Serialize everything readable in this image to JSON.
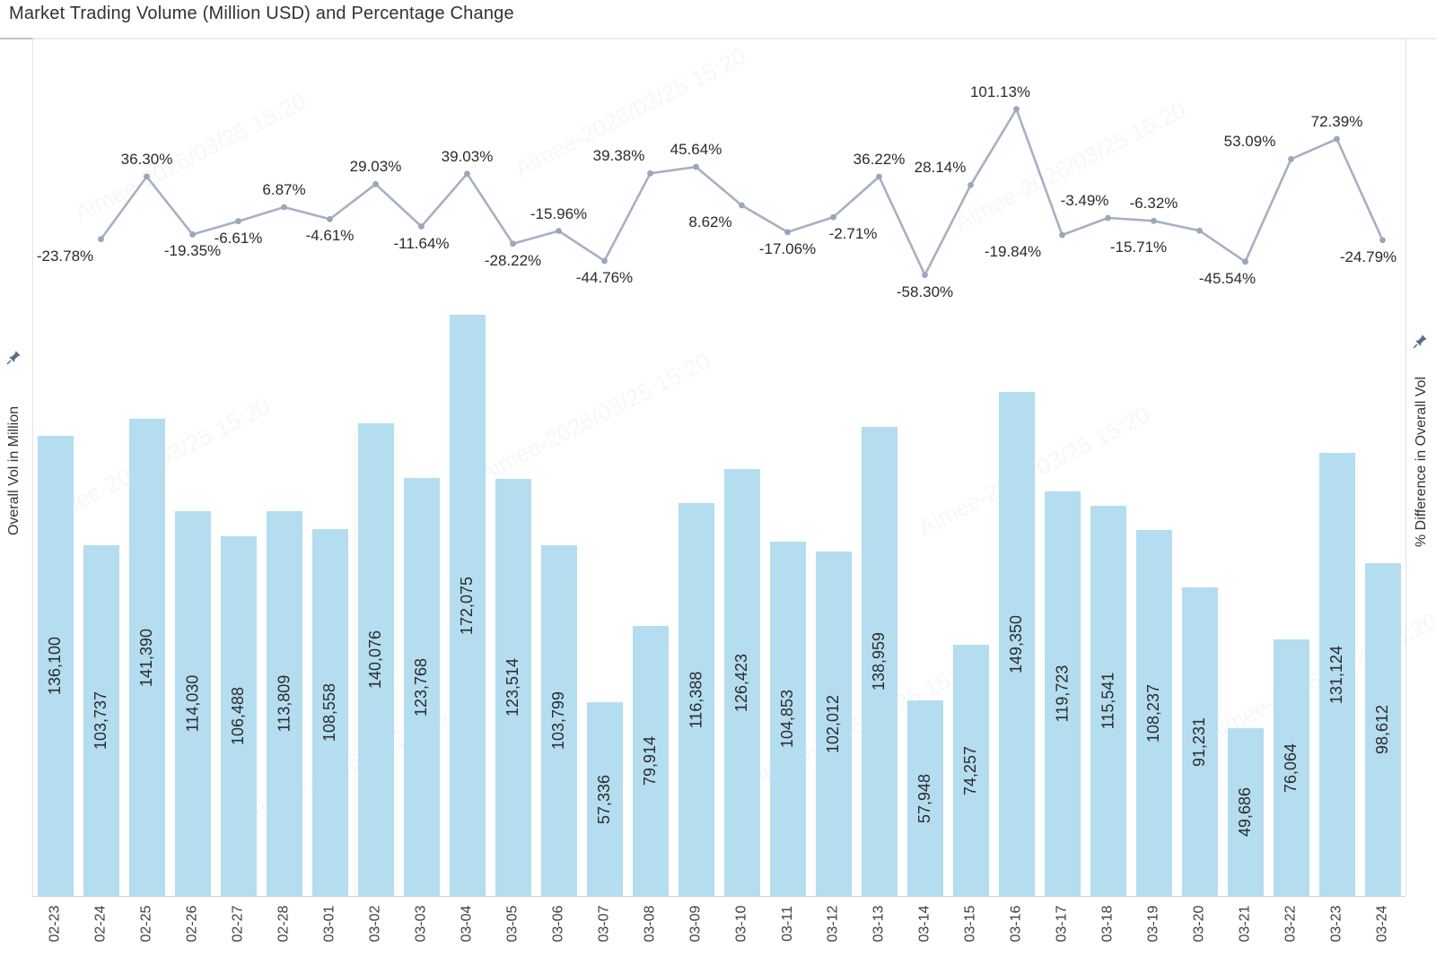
{
  "title": "Market Trading Volume (Million USD) and Percentage Change",
  "left_axis": {
    "title": "Overall Vol in Million",
    "icon": "pin-icon"
  },
  "right_axis": {
    "title": "% Difference in Overall Vol",
    "icon": "pin-icon"
  },
  "watermark": {
    "text": "Aimee-2026/03/25 15:20"
  },
  "colors": {
    "bar_fill": "#b4ddf0",
    "line_stroke": "#a6b1c2",
    "marker_fill": "#9aa7ba",
    "label_text": "#2b2b2b",
    "pin": "#5b6c8a"
  },
  "chart_data": {
    "type": "bar",
    "title": "Market Trading Volume (Million USD) and Percentage Change",
    "categories": [
      "02-23",
      "02-24",
      "02-25",
      "02-26",
      "02-27",
      "02-28",
      "03-01",
      "03-02",
      "03-03",
      "03-04",
      "03-05",
      "03-06",
      "03-07",
      "03-08",
      "03-09",
      "03-10",
      "03-11",
      "03-12",
      "03-13",
      "03-14",
      "03-15",
      "03-16",
      "03-17",
      "03-18",
      "03-19",
      "03-20",
      "03-21",
      "03-22",
      "03-23",
      "03-24"
    ],
    "series": [
      {
        "name": "Overall Vol in Million",
        "type": "bar",
        "values": [
          136100,
          103737,
          141390,
          114030,
          106488,
          113809,
          108558,
          140076,
          123768,
          172075,
          123514,
          103799,
          57336,
          79914,
          116388,
          126423,
          104853,
          102012,
          138959,
          57948,
          74257,
          149350,
          119723,
          115541,
          108237,
          91231,
          49686,
          76064,
          131124,
          98612
        ],
        "labels": [
          "136,100",
          "103,737",
          "141,390",
          "114,030",
          "106,488",
          "113,809",
          "108,558",
          "140,076",
          "123,768",
          "172,075",
          "123,514",
          "103,799",
          "57,336",
          "79,914",
          "116,388",
          "126,423",
          "104,853",
          "102,012",
          "138,959",
          "57,948",
          "74,257",
          "149,350",
          "119,723",
          "115,541",
          "108,237",
          "91,231",
          "49,686",
          "76,064",
          "131,124",
          "98,612"
        ]
      },
      {
        "name": "% Difference in Overall Vol",
        "type": "line",
        "start_category_index": 1,
        "values": [
          -23.78,
          36.3,
          -19.35,
          -6.61,
          6.87,
          -4.61,
          29.03,
          -11.64,
          39.03,
          -28.22,
          -15.96,
          -44.76,
          39.38,
          45.64,
          8.62,
          -17.06,
          -2.71,
          36.22,
          -58.3,
          28.14,
          101.13,
          -19.84,
          -3.49,
          -6.32,
          -15.71,
          -45.54,
          53.09,
          72.39,
          -24.79
        ],
        "labels": [
          "-23.78%",
          "36.30%",
          "-19.35%",
          "-6.61%",
          "6.87%",
          "-4.61%",
          "29.03%",
          "-11.64%",
          "39.03%",
          "-28.22%",
          "-15.96%",
          "-44.76%",
          "39.38%",
          "45.64%",
          "8.62%",
          "-17.06%",
          "-2.71%",
          "36.22%",
          "-58.30%",
          "28.14%",
          "101.13%",
          "-19.84%",
          "-3.49%",
          "-6.32%",
          "-15.71%",
          "-45.54%",
          "53.09%",
          "72.39%",
          "-24.79%"
        ],
        "label_side": [
          "below",
          "above",
          "below",
          "below",
          "above",
          "below",
          "above",
          "below",
          "above",
          "below",
          "above",
          "below",
          "above",
          "above",
          "below",
          "below",
          "below",
          "above",
          "below",
          "above",
          "above",
          "below",
          "above",
          "above",
          "below",
          "below",
          "above",
          "above",
          "below"
        ],
        "label_dx": [
          -40,
          0,
          0,
          0,
          0,
          0,
          0,
          0,
          0,
          0,
          0,
          0,
          -35,
          0,
          -35,
          0,
          22,
          0,
          0,
          -34,
          -18,
          -55,
          -26,
          0,
          -68,
          -20,
          -46,
          0,
          -16
        ]
      }
    ],
    "xlabel": "",
    "ylabel_left": "Overall Vol in Million",
    "ylabel_right": "% Difference in Overall Vol",
    "grid": false,
    "legend": false
  }
}
